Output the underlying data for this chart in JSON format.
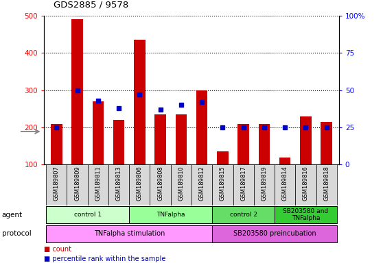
{
  "title": "GDS2885 / 9578",
  "samples": [
    "GSM189807",
    "GSM189809",
    "GSM189811",
    "GSM189813",
    "GSM189806",
    "GSM189808",
    "GSM189810",
    "GSM189812",
    "GSM189815",
    "GSM189817",
    "GSM189819",
    "GSM189814",
    "GSM189816",
    "GSM189818"
  ],
  "count_values": [
    210,
    490,
    270,
    220,
    435,
    235,
    235,
    300,
    135,
    210,
    210,
    120,
    230,
    215
  ],
  "percentile_values": [
    25,
    50,
    43,
    38,
    47,
    37,
    40,
    42,
    25,
    25,
    25,
    25,
    25,
    25
  ],
  "ylim_left": [
    100,
    500
  ],
  "ylim_right": [
    0,
    100
  ],
  "left_ticks": [
    100,
    200,
    300,
    400,
    500
  ],
  "right_ticks": [
    0,
    25,
    50,
    75,
    100
  ],
  "right_tick_labels": [
    "0",
    "25",
    "50",
    "75",
    "100%"
  ],
  "bar_color": "#cc0000",
  "dot_color": "#0000cc",
  "agent_groups": [
    {
      "label": "control 1",
      "start": 0,
      "end": 4,
      "color": "#ccffcc"
    },
    {
      "label": "TNFalpha",
      "start": 4,
      "end": 8,
      "color": "#99ff99"
    },
    {
      "label": "control 2",
      "start": 8,
      "end": 11,
      "color": "#66dd66"
    },
    {
      "label": "SB203580 and\nTNFalpha",
      "start": 11,
      "end": 14,
      "color": "#33cc33"
    }
  ],
  "protocol_groups": [
    {
      "label": "TNFalpha stimulation",
      "start": 0,
      "end": 8,
      "color": "#ff99ff"
    },
    {
      "label": "SB203580 preincubation",
      "start": 8,
      "end": 14,
      "color": "#dd66dd"
    }
  ],
  "agent_label": "agent",
  "protocol_label": "protocol",
  "legend_count": "count",
  "legend_percentile": "percentile rank within the sample",
  "background_color": "#ffffff",
  "chart_bg": "#ffffff",
  "sample_box_color": "#d8d8d8",
  "grid_color": "#000000"
}
